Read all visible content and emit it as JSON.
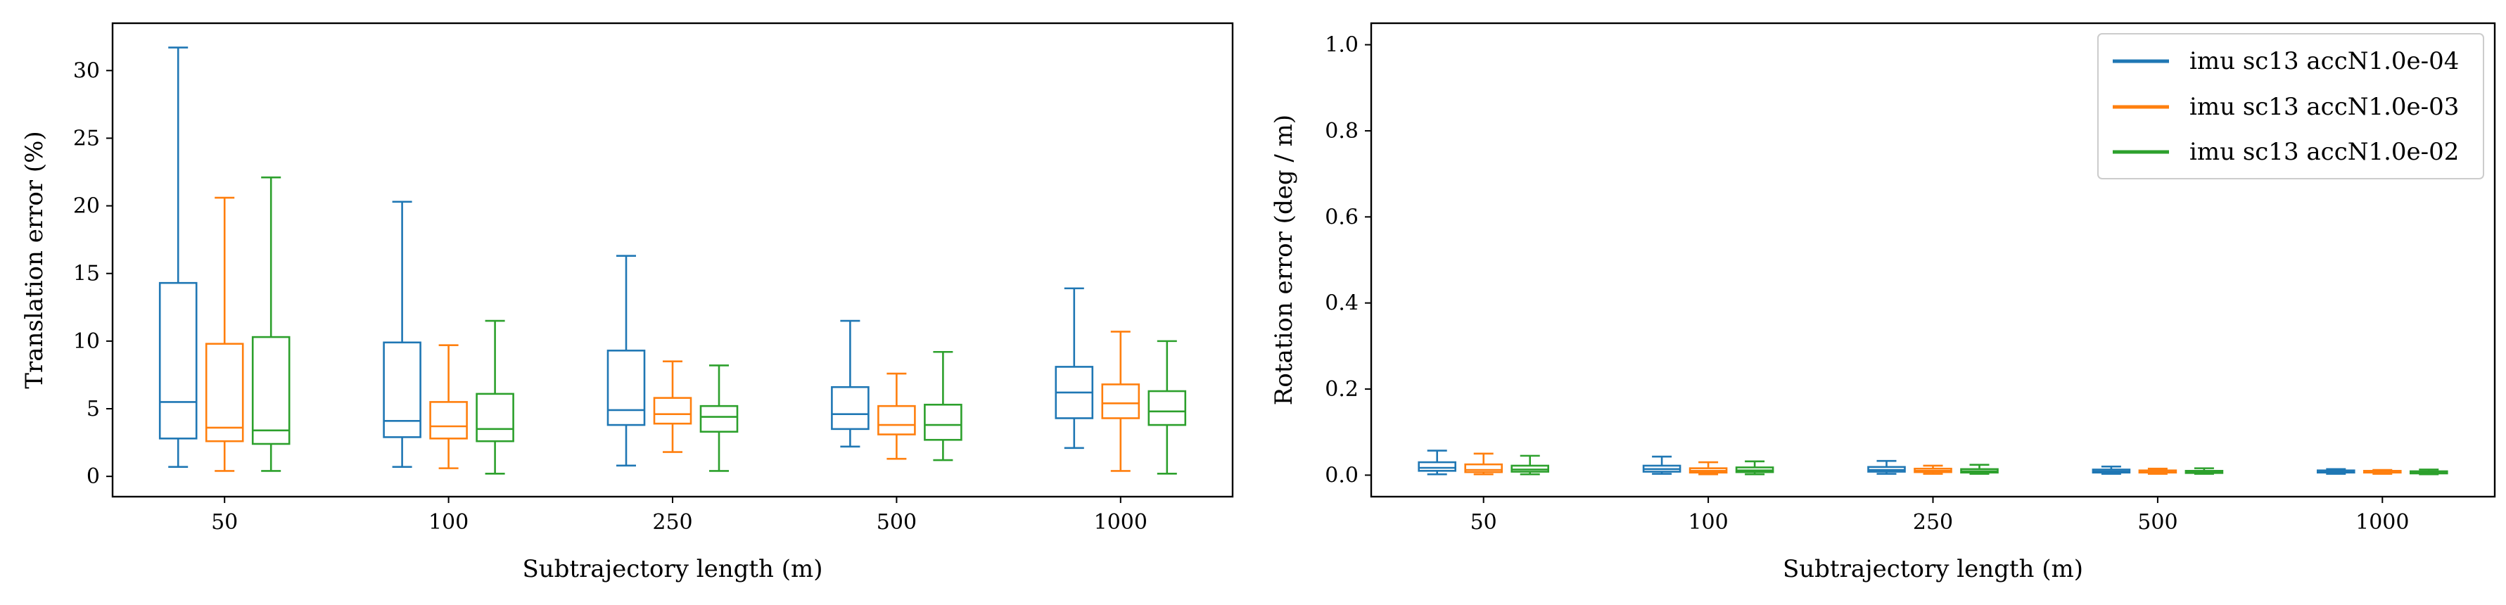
{
  "chart_data": [
    {
      "type": "box",
      "title": "",
      "xlabel": "Subtrajectory length (m)",
      "ylabel": "Translation error (%)",
      "categories": [
        "50",
        "100",
        "250",
        "500",
        "1000"
      ],
      "ylim": [
        -1.5,
        33.5
      ],
      "yticks": [
        0,
        5,
        10,
        15,
        20,
        25,
        30
      ],
      "grid": false,
      "legend": null,
      "series": [
        {
          "color": "#1f77b4",
          "boxes": [
            {
              "whislo": 0.7,
              "q1": 2.8,
              "med": 5.5,
              "q3": 14.3,
              "whishi": 31.7
            },
            {
              "whislo": 0.7,
              "q1": 2.9,
              "med": 4.1,
              "q3": 9.9,
              "whishi": 20.3
            },
            {
              "whislo": 0.8,
              "q1": 3.8,
              "med": 4.9,
              "q3": 9.3,
              "whishi": 16.3
            },
            {
              "whislo": 2.2,
              "q1": 3.5,
              "med": 4.6,
              "q3": 6.6,
              "whishi": 11.5
            },
            {
              "whislo": 2.1,
              "q1": 4.3,
              "med": 6.2,
              "q3": 8.1,
              "whishi": 13.9
            }
          ]
        },
        {
          "color": "#ff7f0e",
          "boxes": [
            {
              "whislo": 0.4,
              "q1": 2.6,
              "med": 3.6,
              "q3": 9.8,
              "whishi": 20.6
            },
            {
              "whislo": 0.6,
              "q1": 2.8,
              "med": 3.7,
              "q3": 5.5,
              "whishi": 9.7
            },
            {
              "whislo": 1.8,
              "q1": 3.9,
              "med": 4.6,
              "q3": 5.8,
              "whishi": 8.5
            },
            {
              "whislo": 1.3,
              "q1": 3.1,
              "med": 3.8,
              "q3": 5.2,
              "whishi": 7.6
            },
            {
              "whislo": 0.4,
              "q1": 4.3,
              "med": 5.4,
              "q3": 6.8,
              "whishi": 10.7
            }
          ]
        },
        {
          "color": "#2ca02c",
          "boxes": [
            {
              "whislo": 0.4,
              "q1": 2.4,
              "med": 3.4,
              "q3": 10.3,
              "whishi": 22.1
            },
            {
              "whislo": 0.2,
              "q1": 2.6,
              "med": 3.5,
              "q3": 6.1,
              "whishi": 11.5
            },
            {
              "whislo": 0.4,
              "q1": 3.3,
              "med": 4.4,
              "q3": 5.2,
              "whishi": 8.2
            },
            {
              "whislo": 1.2,
              "q1": 2.7,
              "med": 3.8,
              "q3": 5.3,
              "whishi": 9.2
            },
            {
              "whislo": 0.2,
              "q1": 3.8,
              "med": 4.8,
              "q3": 6.3,
              "whishi": 10.0
            }
          ]
        }
      ]
    },
    {
      "type": "box",
      "title": "",
      "xlabel": "Subtrajectory length (m)",
      "ylabel": "Rotation error (deg / m)",
      "categories": [
        "50",
        "100",
        "250",
        "500",
        "1000"
      ],
      "ylim": [
        -0.05,
        1.05
      ],
      "yticks": [
        "0.0",
        "0.2",
        "0.4",
        "0.6",
        "0.8",
        "1.0"
      ],
      "grid": false,
      "legend": "top-right",
      "series": [
        {
          "name": "imu sc13 accN1.0e-04",
          "color": "#1f77b4",
          "boxes": [
            {
              "whislo": 0.002,
              "q1": 0.01,
              "med": 0.017,
              "q3": 0.03,
              "whishi": 0.057
            },
            {
              "whislo": 0.003,
              "q1": 0.008,
              "med": 0.014,
              "q3": 0.022,
              "whishi": 0.043
            },
            {
              "whislo": 0.003,
              "q1": 0.008,
              "med": 0.012,
              "q3": 0.019,
              "whishi": 0.033
            },
            {
              "whislo": 0.003,
              "q1": 0.006,
              "med": 0.009,
              "q3": 0.013,
              "whishi": 0.02
            },
            {
              "whislo": 0.003,
              "q1": 0.006,
              "med": 0.008,
              "q3": 0.011,
              "whishi": 0.014
            }
          ]
        },
        {
          "name": "imu sc13 accN1.0e-03",
          "color": "#ff7f0e",
          "boxes": [
            {
              "whislo": 0.002,
              "q1": 0.007,
              "med": 0.012,
              "q3": 0.025,
              "whishi": 0.05
            },
            {
              "whislo": 0.002,
              "q1": 0.006,
              "med": 0.01,
              "q3": 0.016,
              "whishi": 0.03
            },
            {
              "whislo": 0.003,
              "q1": 0.007,
              "med": 0.01,
              "q3": 0.015,
              "whishi": 0.022
            },
            {
              "whislo": 0.003,
              "q1": 0.006,
              "med": 0.008,
              "q3": 0.011,
              "whishi": 0.015
            },
            {
              "whislo": 0.003,
              "q1": 0.006,
              "med": 0.008,
              "q3": 0.01,
              "whishi": 0.012
            }
          ]
        },
        {
          "name": "imu sc13 accN1.0e-02",
          "color": "#2ca02c",
          "boxes": [
            {
              "whislo": 0.002,
              "q1": 0.008,
              "med": 0.013,
              "q3": 0.022,
              "whishi": 0.045
            },
            {
              "whislo": 0.002,
              "q1": 0.007,
              "med": 0.011,
              "q3": 0.018,
              "whishi": 0.032
            },
            {
              "whislo": 0.003,
              "q1": 0.006,
              "med": 0.009,
              "q3": 0.014,
              "whishi": 0.024
            },
            {
              "whislo": 0.003,
              "q1": 0.005,
              "med": 0.007,
              "q3": 0.01,
              "whishi": 0.016
            },
            {
              "whislo": 0.002,
              "q1": 0.004,
              "med": 0.006,
              "q3": 0.009,
              "whishi": 0.013
            }
          ]
        }
      ]
    }
  ]
}
